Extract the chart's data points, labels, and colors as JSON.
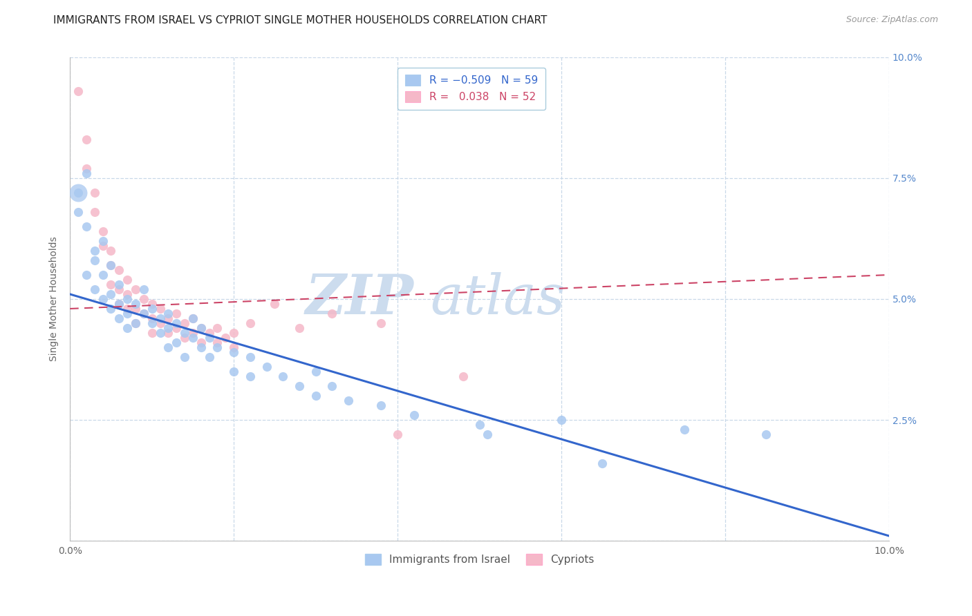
{
  "title": "IMMIGRANTS FROM ISRAEL VS CYPRIOT SINGLE MOTHER HOUSEHOLDS CORRELATION CHART",
  "source": "Source: ZipAtlas.com",
  "ylabel": "Single Mother Households",
  "xlim": [
    0.0,
    0.1
  ],
  "ylim": [
    0.0,
    0.1
  ],
  "yticks": [
    0.0,
    0.025,
    0.05,
    0.075,
    0.1
  ],
  "ytick_labels_right": [
    "",
    "2.5%",
    "5.0%",
    "7.5%",
    "10.0%"
  ],
  "legend_label_blue": "Immigrants from Israel",
  "legend_label_pink": "Cypriots",
  "blue_color": "#a8c8f0",
  "pink_color": "#f5b8c8",
  "line_blue_color": "#3366cc",
  "line_pink_color": "#cc4466",
  "watermark_color": "#ccdcee",
  "background_color": "#ffffff",
  "grid_color": "#c8d8e8",
  "blue_scatter": [
    [
      0.001,
      0.072
    ],
    [
      0.001,
      0.068
    ],
    [
      0.002,
      0.076
    ],
    [
      0.002,
      0.065
    ],
    [
      0.002,
      0.055
    ],
    [
      0.003,
      0.058
    ],
    [
      0.003,
      0.052
    ],
    [
      0.003,
      0.06
    ],
    [
      0.004,
      0.062
    ],
    [
      0.004,
      0.055
    ],
    [
      0.004,
      0.05
    ],
    [
      0.005,
      0.057
    ],
    [
      0.005,
      0.051
    ],
    [
      0.005,
      0.048
    ],
    [
      0.006,
      0.053
    ],
    [
      0.006,
      0.049
    ],
    [
      0.006,
      0.046
    ],
    [
      0.007,
      0.05
    ],
    [
      0.007,
      0.047
    ],
    [
      0.007,
      0.044
    ],
    [
      0.008,
      0.049
    ],
    [
      0.008,
      0.045
    ],
    [
      0.009,
      0.052
    ],
    [
      0.009,
      0.047
    ],
    [
      0.01,
      0.048
    ],
    [
      0.01,
      0.045
    ],
    [
      0.011,
      0.046
    ],
    [
      0.011,
      0.043
    ],
    [
      0.012,
      0.047
    ],
    [
      0.012,
      0.044
    ],
    [
      0.012,
      0.04
    ],
    [
      0.013,
      0.045
    ],
    [
      0.013,
      0.041
    ],
    [
      0.014,
      0.043
    ],
    [
      0.014,
      0.038
    ],
    [
      0.015,
      0.046
    ],
    [
      0.015,
      0.042
    ],
    [
      0.016,
      0.044
    ],
    [
      0.016,
      0.04
    ],
    [
      0.017,
      0.042
    ],
    [
      0.017,
      0.038
    ],
    [
      0.018,
      0.04
    ],
    [
      0.02,
      0.039
    ],
    [
      0.02,
      0.035
    ],
    [
      0.022,
      0.038
    ],
    [
      0.022,
      0.034
    ],
    [
      0.024,
      0.036
    ],
    [
      0.026,
      0.034
    ],
    [
      0.028,
      0.032
    ],
    [
      0.03,
      0.035
    ],
    [
      0.03,
      0.03
    ],
    [
      0.032,
      0.032
    ],
    [
      0.034,
      0.029
    ],
    [
      0.038,
      0.028
    ],
    [
      0.042,
      0.026
    ],
    [
      0.05,
      0.024
    ],
    [
      0.051,
      0.022
    ],
    [
      0.06,
      0.025
    ],
    [
      0.065,
      0.016
    ],
    [
      0.075,
      0.023
    ],
    [
      0.085,
      0.022
    ]
  ],
  "blue_large_points": [
    [
      0.001,
      0.072
    ]
  ],
  "blue_large_size": 350,
  "pink_scatter": [
    [
      0.001,
      0.093
    ],
    [
      0.002,
      0.083
    ],
    [
      0.002,
      0.077
    ],
    [
      0.003,
      0.072
    ],
    [
      0.003,
      0.068
    ],
    [
      0.004,
      0.064
    ],
    [
      0.004,
      0.061
    ],
    [
      0.005,
      0.06
    ],
    [
      0.005,
      0.057
    ],
    [
      0.005,
      0.053
    ],
    [
      0.006,
      0.056
    ],
    [
      0.006,
      0.052
    ],
    [
      0.006,
      0.049
    ],
    [
      0.007,
      0.054
    ],
    [
      0.007,
      0.051
    ],
    [
      0.007,
      0.048
    ],
    [
      0.008,
      0.052
    ],
    [
      0.008,
      0.048
    ],
    [
      0.008,
      0.045
    ],
    [
      0.009,
      0.05
    ],
    [
      0.009,
      0.047
    ],
    [
      0.01,
      0.049
    ],
    [
      0.01,
      0.046
    ],
    [
      0.01,
      0.043
    ],
    [
      0.011,
      0.048
    ],
    [
      0.011,
      0.045
    ],
    [
      0.012,
      0.046
    ],
    [
      0.012,
      0.043
    ],
    [
      0.013,
      0.047
    ],
    [
      0.013,
      0.044
    ],
    [
      0.014,
      0.045
    ],
    [
      0.014,
      0.042
    ],
    [
      0.015,
      0.046
    ],
    [
      0.015,
      0.043
    ],
    [
      0.016,
      0.044
    ],
    [
      0.016,
      0.041
    ],
    [
      0.017,
      0.043
    ],
    [
      0.018,
      0.044
    ],
    [
      0.018,
      0.041
    ],
    [
      0.019,
      0.042
    ],
    [
      0.02,
      0.043
    ],
    [
      0.02,
      0.04
    ],
    [
      0.022,
      0.045
    ],
    [
      0.025,
      0.049
    ],
    [
      0.028,
      0.044
    ],
    [
      0.032,
      0.047
    ],
    [
      0.038,
      0.045
    ],
    [
      0.04,
      0.022
    ],
    [
      0.048,
      0.034
    ]
  ],
  "blue_trend_x": [
    0.0,
    0.1
  ],
  "blue_trend_y": [
    0.051,
    0.001
  ],
  "pink_trend_x": [
    0.0,
    0.1
  ],
  "pink_trend_y": [
    0.048,
    0.055
  ],
  "title_fontsize": 11,
  "source_fontsize": 9,
  "axis_label_fontsize": 10,
  "tick_fontsize": 10,
  "legend_fontsize": 11
}
